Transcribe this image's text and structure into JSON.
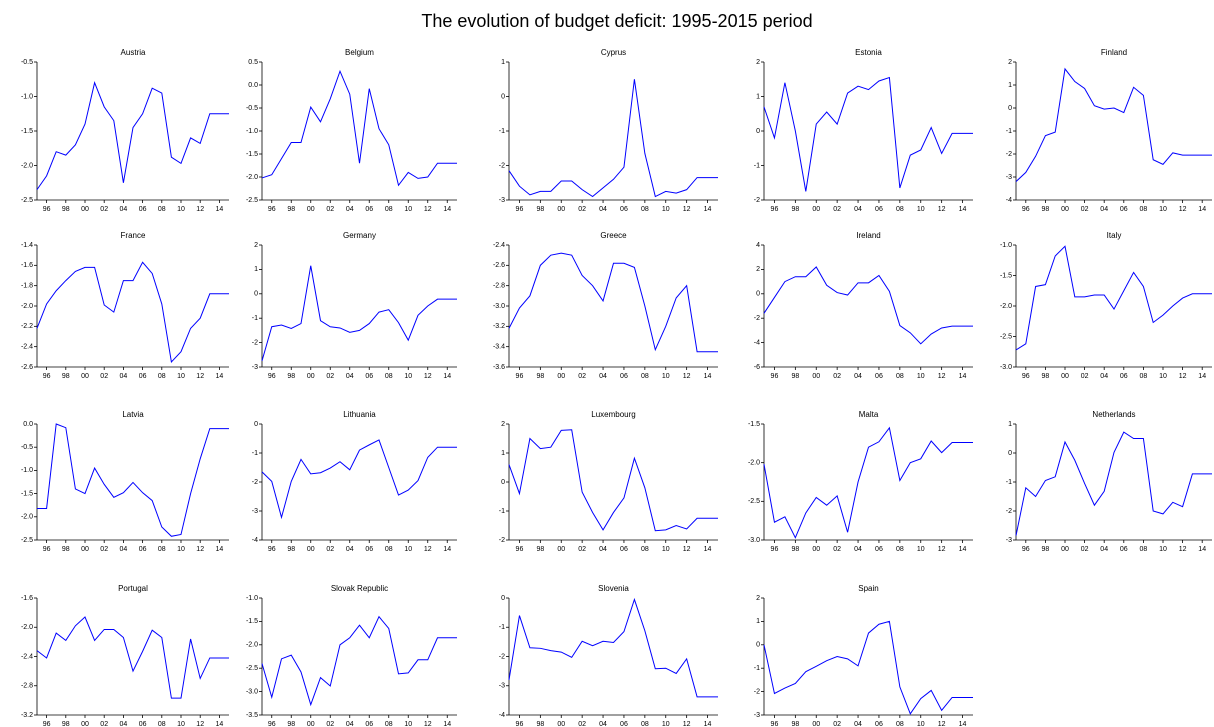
{
  "title": "The evolution of budget deficit: 1995-2015 period",
  "categories": [
    null,
    "96",
    null,
    "98",
    null,
    "00",
    null,
    "02",
    null,
    "04",
    null,
    "06",
    null,
    "08",
    null,
    "10",
    null,
    "12",
    null,
    "14",
    null
  ],
  "color": "#0000ff",
  "chart_data": [
    {
      "type": "line",
      "title": "Austria",
      "ylim": [
        -2.5,
        -0.5
      ],
      "yticks": [
        -2.5,
        {
          "value": -2,
          "label": "-2.0"
        },
        -1.5,
        {
          "value": -1,
          "label": "-1.0"
        },
        -0.5
      ],
      "values": [
        -2.35,
        -2.15,
        -1.8,
        -1.85,
        -1.7,
        -1.4,
        -0.8,
        -1.15,
        -1.35,
        -2.25,
        -1.45,
        -1.25,
        -0.88,
        -0.95,
        -1.88,
        -1.97,
        -1.6,
        -1.68,
        -1.25,
        -1.25,
        -1.25
      ]
    },
    {
      "type": "line",
      "title": "Belgium",
      "ylim": [
        -2.5,
        0.5
      ],
      "yticks": [
        -2.5,
        {
          "value": -2,
          "label": "-2.0"
        },
        -1.5,
        {
          "value": -1,
          "label": "-1.0"
        },
        -0.5,
        {
          "value": 0,
          "label": "0.0"
        },
        0.5
      ],
      "values": [
        -2.02,
        -1.95,
        -1.6,
        -1.25,
        -1.25,
        -0.48,
        -0.8,
        -0.3,
        0.3,
        -0.2,
        -1.7,
        -0.08,
        -0.95,
        -1.3,
        -2.18,
        -1.9,
        -2.03,
        -2.0,
        -1.7,
        -1.7,
        -1.7
      ]
    },
    {
      "type": "line",
      "title": "Cyprus",
      "ylim": [
        -3,
        1
      ],
      "yticks": [
        -3,
        -2,
        -1,
        0,
        1
      ],
      "values": [
        -2.15,
        -2.6,
        -2.85,
        -2.75,
        -2.75,
        -2.45,
        -2.45,
        -2.7,
        -2.9,
        -2.65,
        -2.4,
        -2.05,
        0.5,
        -1.65,
        -2.9,
        -2.75,
        -2.8,
        -2.7,
        -2.35,
        -2.35,
        -2.35
      ]
    },
    {
      "type": "line",
      "title": "Estonia",
      "ylim": [
        -2,
        2
      ],
      "yticks": [
        -2,
        -1,
        0,
        1,
        2
      ],
      "values": [
        0.7,
        -0.2,
        1.4,
        0,
        -1.75,
        0.2,
        0.55,
        0.2,
        1.1,
        1.3,
        1.2,
        1.45,
        1.55,
        -1.65,
        -0.7,
        -0.55,
        0.1,
        -0.65,
        -0.07,
        -0.07,
        -0.07
      ]
    },
    {
      "type": "line",
      "title": "Finland",
      "ylim": [
        -4,
        2
      ],
      "yticks": [
        -4,
        -3,
        -2,
        -1,
        0,
        1,
        2
      ],
      "values": [
        -3.2,
        -2.8,
        -2.1,
        -1.2,
        -1.05,
        1.7,
        1.15,
        0.85,
        0.1,
        -0.05,
        0,
        -0.2,
        0.9,
        0.55,
        -2.25,
        -2.45,
        -1.95,
        -2.05,
        -2.05,
        -2.05,
        -2.05
      ]
    },
    {
      "type": "line",
      "title": "France",
      "ylim": [
        -2.6,
        -1.4
      ],
      "yticks": [
        -2.6,
        -2.4,
        -2.2,
        {
          "value": -2,
          "label": "-2.0"
        },
        -1.8,
        -1.6,
        -1.4
      ],
      "values": [
        -2.22,
        -1.98,
        -1.85,
        -1.75,
        -1.66,
        -1.62,
        -1.62,
        -1.99,
        -2.06,
        -1.75,
        -1.75,
        -1.57,
        -1.68,
        -1.98,
        -2.55,
        -2.45,
        -2.22,
        -2.12,
        -1.88,
        -1.88,
        -1.88
      ]
    },
    {
      "type": "line",
      "title": "Germany",
      "ylim": [
        -3,
        2
      ],
      "yticks": [
        -3,
        -2,
        -1,
        0,
        1,
        2
      ],
      "values": [
        -2.75,
        -1.35,
        -1.28,
        -1.42,
        -1.22,
        1.15,
        -1.1,
        -1.35,
        -1.4,
        -1.58,
        -1.5,
        -1.22,
        -0.75,
        -0.65,
        -1.18,
        -1.9,
        -0.88,
        -0.5,
        -0.22,
        -0.22,
        -0.22
      ]
    },
    {
      "type": "line",
      "title": "Greece",
      "ylim": [
        -3.6,
        -2.4
      ],
      "yticks": [
        -3.6,
        -3.4,
        -3.2,
        {
          "value": -3,
          "label": "-3.0"
        },
        -2.8,
        -2.6,
        -2.4
      ],
      "values": [
        -3.22,
        -3.02,
        -2.9,
        -2.6,
        -2.5,
        -2.48,
        -2.5,
        -2.7,
        -2.8,
        -2.95,
        -2.58,
        -2.58,
        -2.62,
        -3.0,
        -3.43,
        -3.2,
        -2.92,
        -2.8,
        -3.45,
        -3.45,
        -3.45
      ]
    },
    {
      "type": "line",
      "title": "Ireland",
      "ylim": [
        -6,
        4
      ],
      "yticks": [
        -6,
        -4,
        -2,
        0,
        2,
        4
      ],
      "values": [
        -1.6,
        -0.3,
        1.0,
        1.4,
        1.4,
        2.2,
        0.7,
        0.1,
        -0.1,
        0.9,
        0.9,
        1.5,
        0.2,
        -2.6,
        -3.2,
        -4.1,
        -3.3,
        -2.8,
        -2.65,
        -2.65,
        -2.65
      ]
    },
    {
      "type": "line",
      "title": "Italy",
      "ylim": [
        -3,
        -1
      ],
      "yticks": [
        {
          "value": -3,
          "label": "-3.0"
        },
        -2.5,
        {
          "value": -2,
          "label": "-2.0"
        },
        -1.5,
        {
          "value": -1,
          "label": "-1.0"
        }
      ],
      "values": [
        -2.72,
        -2.62,
        -1.68,
        -1.65,
        -1.18,
        -1.02,
        -1.85,
        -1.85,
        -1.82,
        -1.82,
        -2.05,
        -1.75,
        -1.45,
        -1.68,
        -2.27,
        -2.15,
        -2.0,
        -1.87,
        -1.8,
        -1.8,
        -1.8
      ]
    },
    {
      "type": "line",
      "title": "Latvia",
      "ylim": [
        -2.5,
        0
      ],
      "yticks": [
        -2.5,
        {
          "value": -2,
          "label": "-2.0"
        },
        -1.5,
        {
          "value": -1,
          "label": "-1.0"
        },
        -0.5,
        {
          "value": 0,
          "label": "0.0"
        }
      ],
      "values": [
        -1.82,
        -1.82,
        0,
        -0.08,
        -1.4,
        -1.5,
        -0.95,
        -1.3,
        -1.58,
        -1.48,
        -1.26,
        -1.48,
        -1.65,
        -2.22,
        -2.42,
        -2.38,
        -1.5,
        -0.75,
        -0.1,
        -0.1,
        -0.1
      ]
    },
    {
      "type": "line",
      "title": "Lithuania",
      "ylim": [
        -4,
        0
      ],
      "yticks": [
        -4,
        -3,
        -2,
        -1,
        0
      ],
      "values": [
        -1.65,
        -1.98,
        -3.22,
        -1.98,
        -1.22,
        -1.72,
        -1.68,
        -1.52,
        -1.3,
        -1.58,
        -0.9,
        -0.72,
        -0.55,
        -1.5,
        -2.45,
        -2.28,
        -1.95,
        -1.15,
        -0.8,
        -0.8,
        -0.8
      ]
    },
    {
      "type": "line",
      "title": "Luxembourg",
      "ylim": [
        -2,
        2
      ],
      "yticks": [
        -2,
        -1,
        0,
        1,
        2
      ],
      "values": [
        0.6,
        -0.4,
        1.5,
        1.15,
        1.2,
        1.78,
        1.8,
        -0.35,
        -1.05,
        -1.65,
        -1.05,
        -0.55,
        0.82,
        -0.2,
        -1.68,
        -1.65,
        -1.5,
        -1.62,
        -1.25,
        -1.25,
        -1.25
      ]
    },
    {
      "type": "line",
      "title": "Malta",
      "ylim": [
        -3,
        -1.5
      ],
      "yticks": [
        {
          "value": -3,
          "label": "-3.0"
        },
        -2.5,
        {
          "value": -2,
          "label": "-2.0"
        },
        -1.5
      ],
      "values": [
        -2.02,
        -2.77,
        -2.7,
        -2.97,
        -2.65,
        -2.45,
        -2.55,
        -2.43,
        -2.9,
        -2.25,
        -1.8,
        -1.73,
        -1.55,
        -2.23,
        -2.0,
        -1.95,
        -1.72,
        -1.87,
        -1.74,
        -1.74,
        -1.74
      ]
    },
    {
      "type": "line",
      "title": "Netherlands",
      "ylim": [
        -3,
        1
      ],
      "yticks": [
        -3,
        -2,
        -1,
        0,
        1
      ],
      "values": [
        -2.85,
        -1.2,
        -1.5,
        -0.95,
        -0.82,
        0.38,
        -0.25,
        -1.05,
        -1.8,
        -1.32,
        0.02,
        0.72,
        0.5,
        0.5,
        -2.0,
        -2.1,
        -1.7,
        -1.85,
        -0.72,
        -0.72,
        -0.72
      ]
    },
    {
      "type": "line",
      "title": "Portugal",
      "ylim": [
        -3.2,
        -1.6
      ],
      "yticks": [
        -3.2,
        -2.8,
        -2.4,
        {
          "value": -2,
          "label": "-2.0"
        },
        -1.6
      ],
      "values": [
        -2.32,
        -2.42,
        -2.08,
        -2.18,
        -1.98,
        -1.86,
        -2.18,
        -2.03,
        -2.03,
        -2.14,
        -2.6,
        -2.33,
        -2.04,
        -2.14,
        -2.97,
        -2.97,
        -2.16,
        -2.7,
        -2.42,
        -2.42,
        -2.42
      ]
    },
    {
      "type": "line",
      "title": "Slovak Republic",
      "ylim": [
        -3.5,
        -1
      ],
      "yticks": [
        -3.5,
        {
          "value": -3,
          "label": "-3.0"
        },
        -2.5,
        {
          "value": -2,
          "label": "-2.0"
        },
        -1.5,
        {
          "value": -1,
          "label": "-1.0"
        }
      ],
      "values": [
        -2.4,
        -3.12,
        -2.3,
        -2.22,
        -2.58,
        -3.28,
        -2.7,
        -2.88,
        -2.0,
        -1.85,
        -1.58,
        -1.85,
        -1.4,
        -1.65,
        -2.62,
        -2.6,
        -2.32,
        -2.32,
        -1.85,
        -1.85,
        -1.85
      ]
    },
    {
      "type": "line",
      "title": "Slovenia",
      "ylim": [
        -4,
        0
      ],
      "yticks": [
        -4,
        -3,
        -2,
        -1,
        0
      ],
      "values": [
        -2.8,
        -0.6,
        -1.7,
        -1.72,
        -1.8,
        -1.85,
        -2.03,
        -1.48,
        -1.63,
        -1.48,
        -1.52,
        -1.15,
        -0.05,
        -1.12,
        -2.42,
        -2.4,
        -2.58,
        -2.08,
        -3.38,
        -3.38,
        -3.38
      ]
    },
    {
      "type": "line",
      "title": "Spain",
      "ylim": [
        -3,
        2
      ],
      "yticks": [
        -3,
        -2,
        -1,
        0,
        1,
        2
      ],
      "values": [
        0,
        -2.08,
        -1.85,
        -1.65,
        -1.15,
        -0.92,
        -0.68,
        -0.5,
        -0.6,
        -0.9,
        0.5,
        0.88,
        1.0,
        -1.8,
        -2.95,
        -2.3,
        -1.95,
        -2.8,
        -2.25,
        -2.25,
        -2.25
      ]
    }
  ]
}
